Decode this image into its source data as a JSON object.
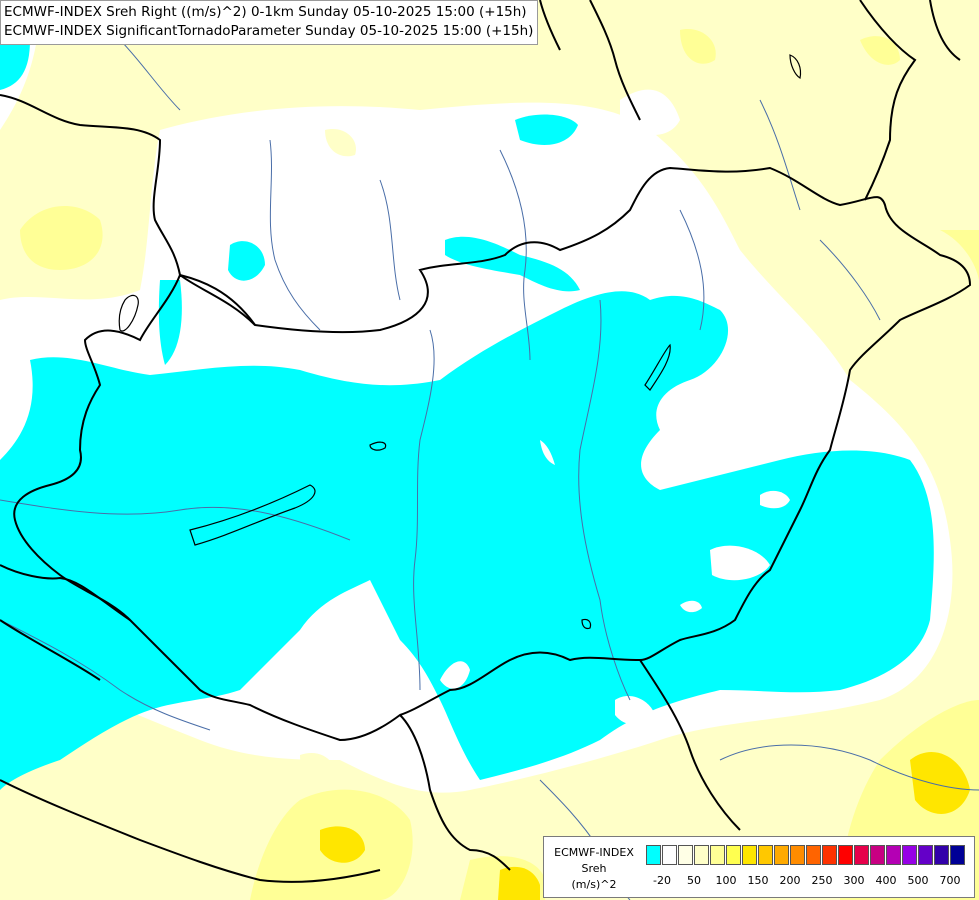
{
  "title": {
    "line1": "ECMWF-INDEX Sreh Right ((m/s)^2) 0-1km Sunday 05-10-2025 15:00 (+15h)",
    "line2": "ECMWF-INDEX SignificantTornadoParameter Sunday 05-10-2025 15:00 (+15h)"
  },
  "legend": {
    "source": "ECMWF-INDEX",
    "parameter": "Sreh",
    "unit": "(m/s)^2",
    "colors": [
      "#00ffff",
      "#ffffff",
      "#ffffe6",
      "#ffffc8",
      "#ffff96",
      "#ffff50",
      "#ffe600",
      "#ffc800",
      "#ffaa00",
      "#ff8c00",
      "#ff6400",
      "#ff3200",
      "#ff0000",
      "#e6004b",
      "#c80082",
      "#b400b4",
      "#9600e6",
      "#6400c8",
      "#3200aa",
      "#000096"
    ],
    "ticks": [
      "-20",
      "50",
      "100",
      "150",
      "200",
      "250",
      "300",
      "400",
      "500",
      "700"
    ]
  },
  "colors": {
    "cyan": "#00ffff",
    "white": "#ffffff",
    "pale_yellow": "#ffffc8",
    "yellow": "#ffff96",
    "gold": "#ffe600",
    "border": "#000000",
    "river": "#4a6ea8"
  }
}
